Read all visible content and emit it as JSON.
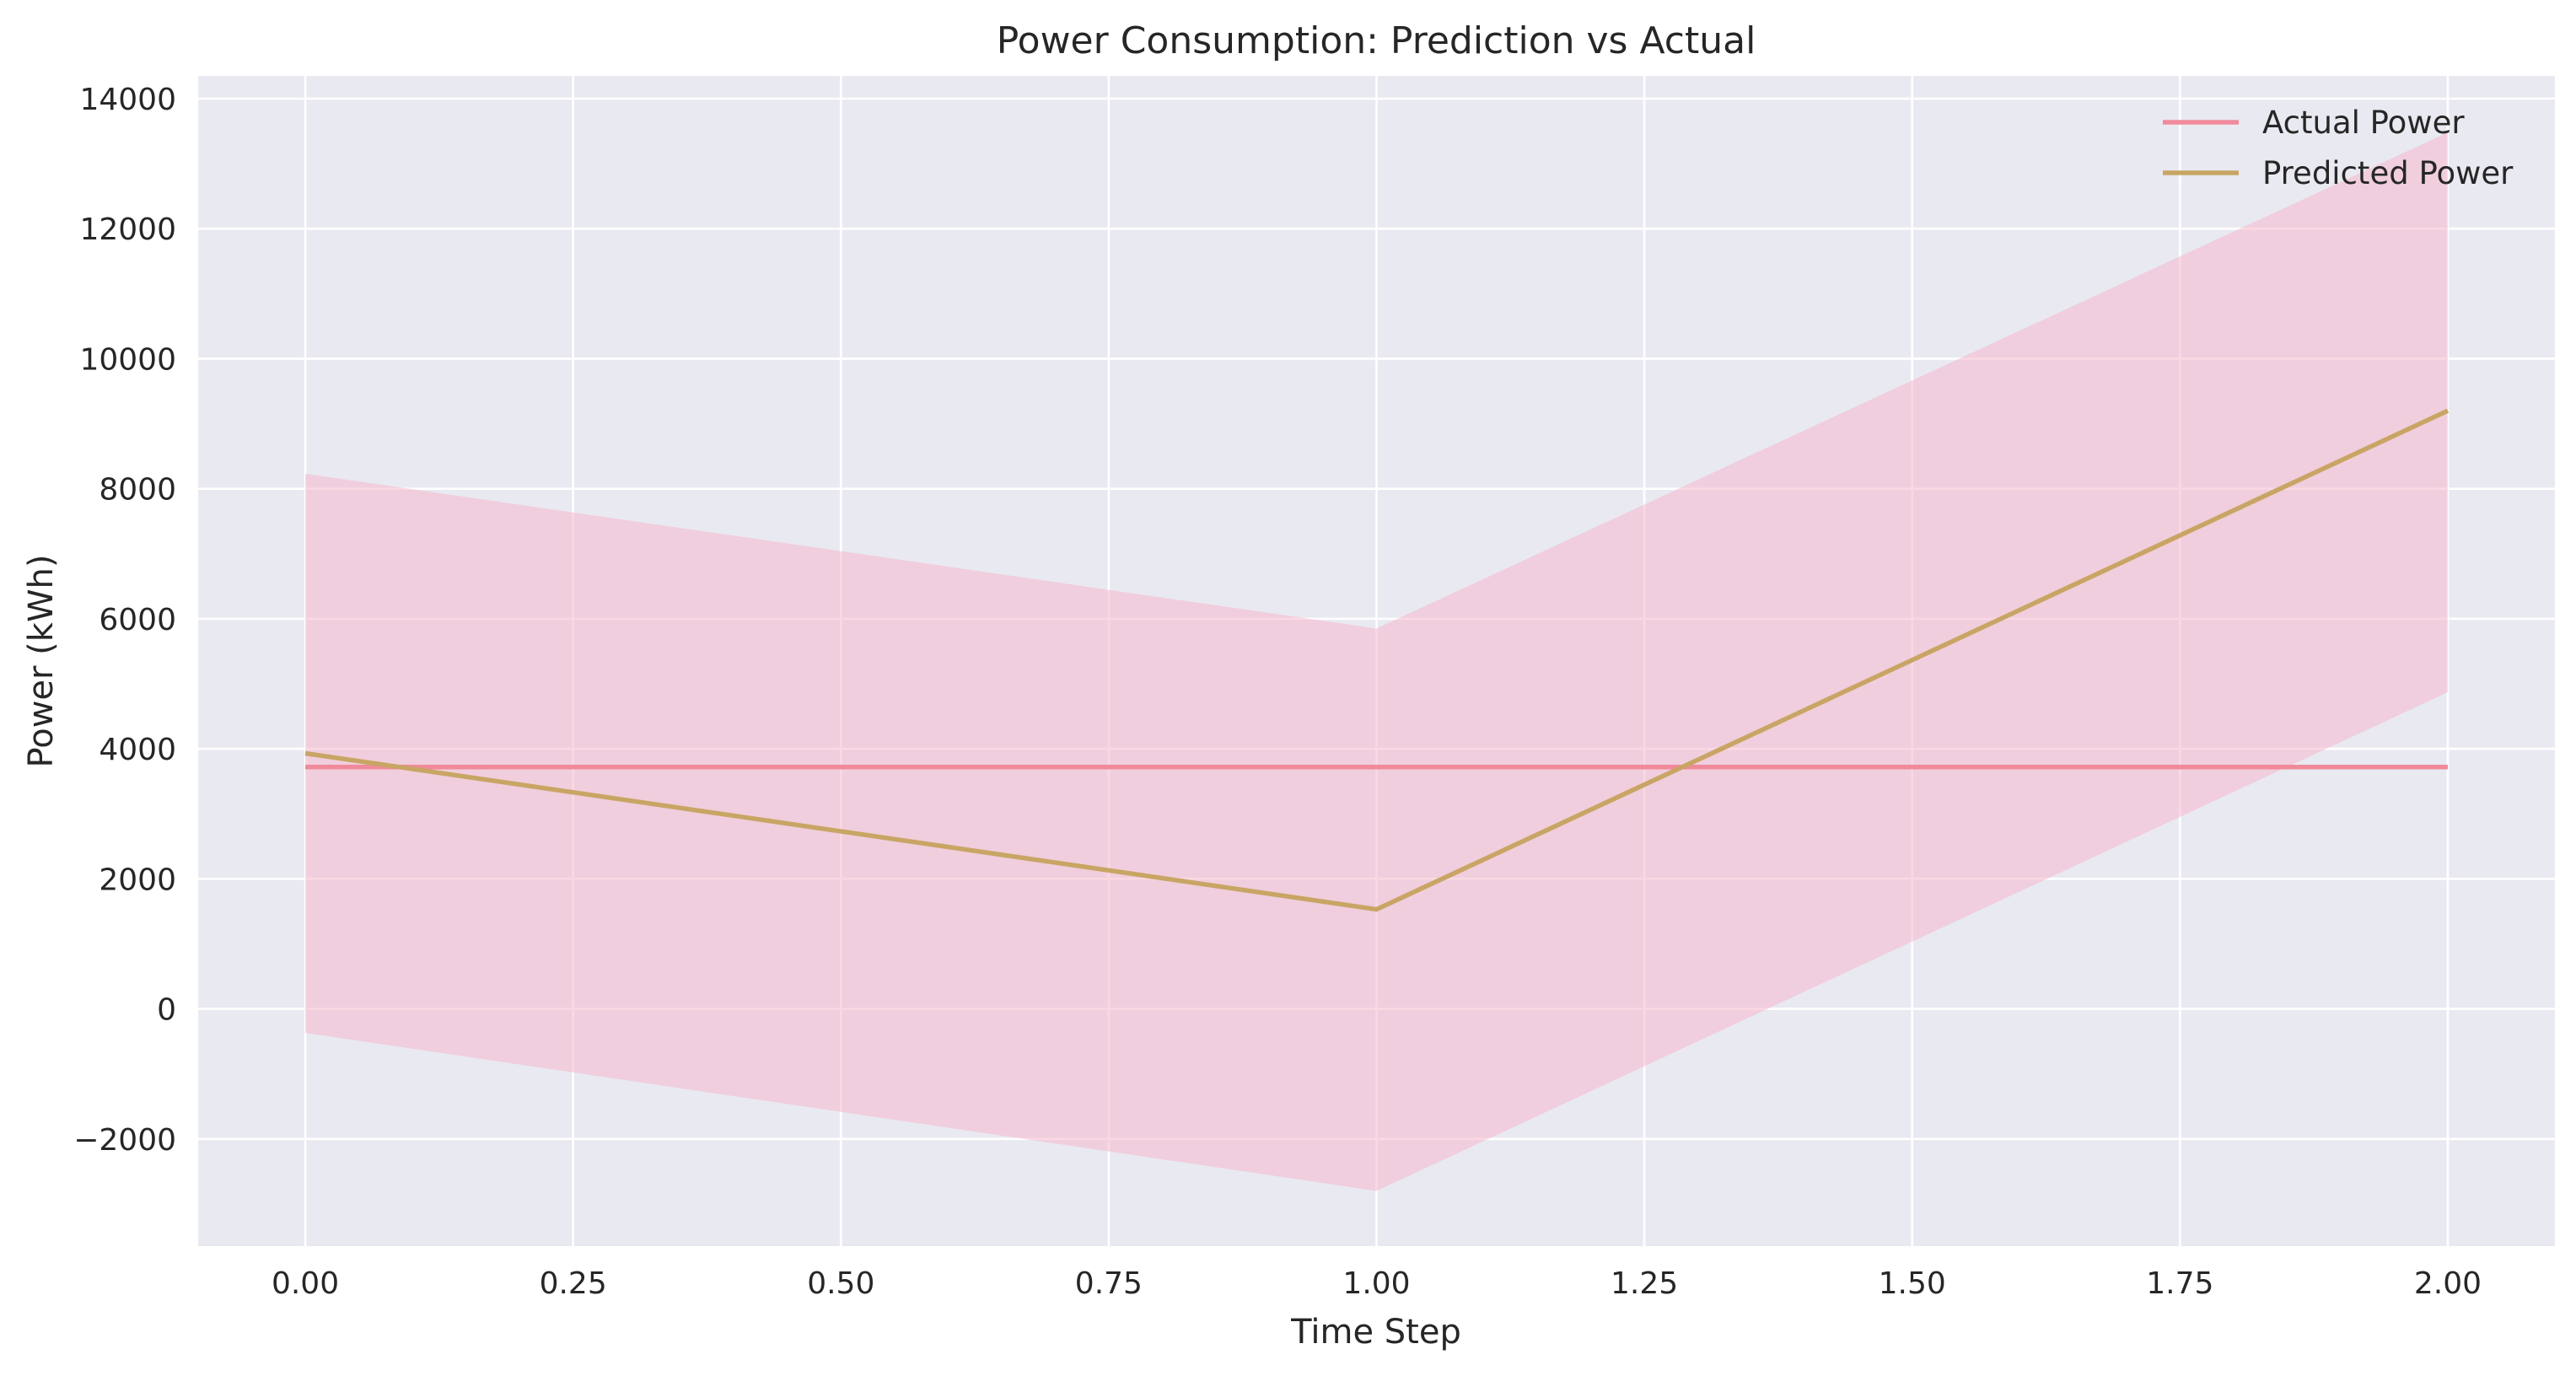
{
  "chart_data": {
    "type": "line",
    "title": "Power Consumption: Prediction vs Actual",
    "xlabel": "Time Step",
    "ylabel": "Power (kWh)",
    "xlim": [
      -0.1,
      2.1
    ],
    "ylim": [
      -3650,
      14350
    ],
    "x_ticks": [
      0,
      0.25,
      0.5,
      0.75,
      1,
      1.25,
      1.5,
      1.75,
      2
    ],
    "x_tick_labels": [
      "0.00",
      "0.25",
      "0.50",
      "0.75",
      "1.00",
      "1.25",
      "1.50",
      "1.75",
      "2.00"
    ],
    "y_ticks": [
      -2000,
      0,
      2000,
      4000,
      6000,
      8000,
      10000,
      12000,
      14000
    ],
    "y_tick_labels": [
      "−2000",
      "0",
      "2000",
      "4000",
      "6000",
      "8000",
      "10000",
      "12000",
      "14000"
    ],
    "x": [
      0,
      1,
      2
    ],
    "series": [
      {
        "name": "Actual Power",
        "values": [
          3720,
          3720,
          3720
        ],
        "color": "#f08a9a"
      },
      {
        "name": "Predicted Power",
        "values": [
          3930,
          1530,
          9200
        ],
        "color": "#c8a564"
      }
    ],
    "band": {
      "lower": [
        -370,
        -2800,
        4870
      ],
      "upper": [
        8230,
        5850,
        13480
      ],
      "color": "#f6b8cc"
    },
    "grid": true,
    "legend_position": "top-right",
    "background": "#e9e9f1"
  }
}
